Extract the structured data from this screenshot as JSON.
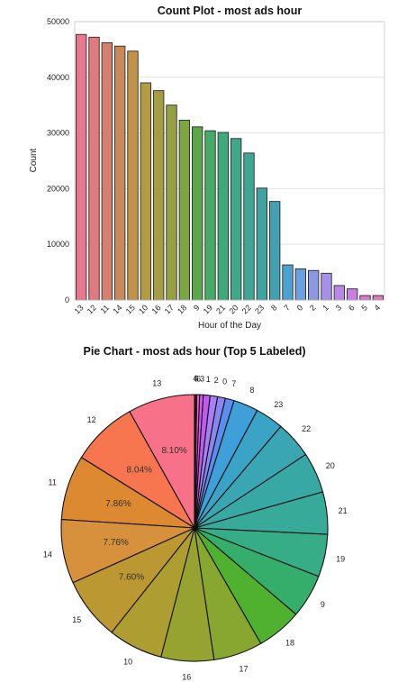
{
  "chart_data": [
    {
      "type": "bar",
      "title": "Count Plot - most ads hour",
      "xlabel": "Hour of the Day",
      "ylabel": "Count",
      "ylim": [
        0,
        50000
      ],
      "yticks": [
        0,
        10000,
        20000,
        30000,
        40000,
        50000
      ],
      "grid": true,
      "categories": [
        "13",
        "12",
        "11",
        "14",
        "15",
        "10",
        "16",
        "17",
        "18",
        "9",
        "19",
        "21",
        "20",
        "22",
        "23",
        "8",
        "7",
        "0",
        "2",
        "1",
        "3",
        "6",
        "5",
        "4"
      ],
      "values": [
        47700,
        47200,
        46200,
        45600,
        44700,
        39000,
        37600,
        35000,
        32300,
        31100,
        30400,
        30100,
        29000,
        26400,
        20100,
        17700,
        6300,
        5600,
        5300,
        4800,
        2600,
        2000,
        800,
        800
      ],
      "colors": [
        "#e8768c",
        "#e07a7e",
        "#d57f6e",
        "#c98a5a",
        "#c09348",
        "#b39a43",
        "#a59d42",
        "#969f42",
        "#7ea543",
        "#5aa84a",
        "#45ab66",
        "#3ea97a",
        "#3ea888",
        "#3fa594",
        "#40a3a0",
        "#42a0b1",
        "#4ba1cf",
        "#6a9fe0",
        "#8c98e4",
        "#a592e8",
        "#b887e8",
        "#cb7de3",
        "#dd77cf",
        "#e578b5"
      ]
    },
    {
      "type": "pie",
      "title": "Pie Chart - most ads hour (Top 5 Labeled)",
      "labels": [
        "13",
        "12",
        "11",
        "14",
        "15",
        "10",
        "16",
        "17",
        "18",
        "9",
        "19",
        "21",
        "20",
        "22",
        "23",
        "8",
        "7",
        "0",
        "2",
        "1",
        "3",
        "6",
        "5",
        "4"
      ],
      "values": [
        47700,
        47200,
        46200,
        45600,
        44700,
        39000,
        37600,
        35000,
        32300,
        31100,
        30400,
        30100,
        29000,
        26400,
        20100,
        17700,
        6300,
        5600,
        5300,
        4800,
        2600,
        2000,
        800,
        800
      ],
      "percent_labels": [
        "8.10%",
        "8.04%",
        "7.86%",
        "7.76%",
        "7.60%"
      ],
      "colors": [
        "#f77189",
        "#f7754f",
        "#dc8932",
        "#d7913c",
        "#bb9832",
        "#ae9d31",
        "#97a331",
        "#87a731",
        "#50b131",
        "#34ae6a",
        "#36ad86",
        "#37aa99",
        "#38a8a4",
        "#3aa6b4",
        "#3ba3c5",
        "#3e9fd9",
        "#5a8ff0",
        "#8b85f4",
        "#a77ef4",
        "#c15bf4",
        "#d655f0",
        "#f45ccc",
        "#f561b4",
        "#f66b9e"
      ]
    }
  ]
}
